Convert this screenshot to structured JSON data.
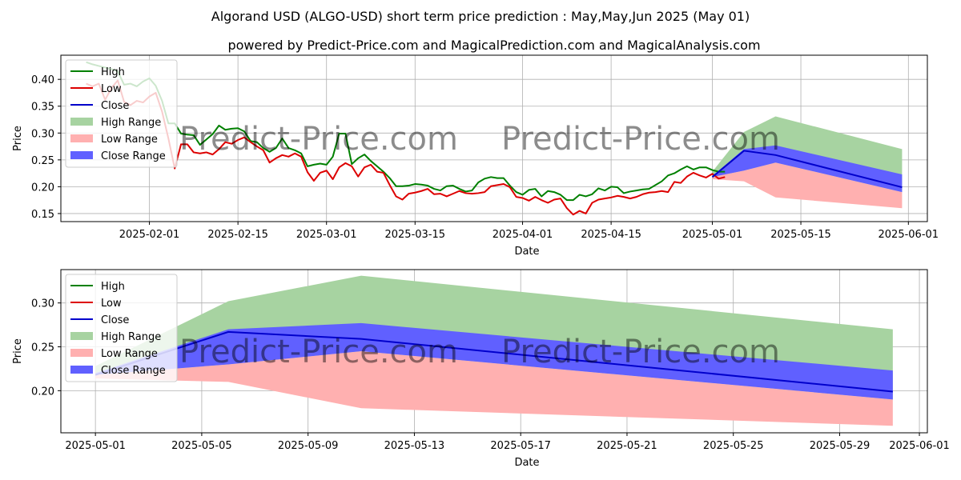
{
  "title": "Algorand USD (ALGO-USD) short term price prediction : May,May,Jun 2025 (May 01)",
  "subtitle": "powered by Predict-Price.com and MagicalPrediction.com and MagicalAnalysis.com",
  "watermark": "Predict-Price.com",
  "colors": {
    "high": "#008000",
    "low": "#dd0000",
    "close": "#0000cc",
    "high_range": "#a7d3a1",
    "low_range": "#ffb0b0",
    "close_range": "#6060ff",
    "grid": "#b0b0b0"
  },
  "legend": [
    "High",
    "Low",
    "Close",
    "High Range",
    "Low Range",
    "Close Range"
  ],
  "chart_data": [
    {
      "type": "line",
      "xlabel": "Date",
      "ylabel": "Price",
      "xlim": [
        "2025-01-18",
        "2025-06-04"
      ],
      "ylim": [
        0.135,
        0.445
      ],
      "x_ticks": [
        "2025-02-01",
        "2025-02-15",
        "2025-03-01",
        "2025-03-15",
        "2025-04-01",
        "2025-04-15",
        "2025-05-01",
        "2025-05-15",
        "2025-06-01"
      ],
      "y_ticks": [
        "0.15",
        "0.20",
        "0.25",
        "0.30",
        "0.35",
        "0.40"
      ],
      "grid": true,
      "legend_position": "top-left",
      "history": {
        "start": "2025-01-22",
        "high": [
          0.432,
          0.428,
          0.425,
          0.422,
          0.419,
          0.415,
          0.39,
          0.392,
          0.387,
          0.396,
          0.402,
          0.388,
          0.36,
          0.318,
          0.318,
          0.299,
          0.297,
          0.296,
          0.278,
          0.288,
          0.298,
          0.314,
          0.306,
          0.308,
          0.309,
          0.303,
          0.285,
          0.283,
          0.272,
          0.265,
          0.272,
          0.29,
          0.272,
          0.268,
          0.262,
          0.238,
          0.241,
          0.243,
          0.241,
          0.256,
          0.299,
          0.299,
          0.242,
          0.253,
          0.26,
          0.248,
          0.238,
          0.228,
          0.216,
          0.201,
          0.201,
          0.202,
          0.205,
          0.204,
          0.202,
          0.196,
          0.193,
          0.201,
          0.202,
          0.196,
          0.191,
          0.193,
          0.208,
          0.215,
          0.218,
          0.216,
          0.216,
          0.202,
          0.19,
          0.185,
          0.194,
          0.196,
          0.182,
          0.192,
          0.19,
          0.185,
          0.175,
          0.175,
          0.185,
          0.182,
          0.186,
          0.197,
          0.193,
          0.2,
          0.199,
          0.188,
          0.191,
          0.193,
          0.195,
          0.196,
          0.203,
          0.21,
          0.221,
          0.225,
          0.232,
          0.238,
          0.232,
          0.236,
          0.236,
          0.231,
          0.228,
          0.228
        ],
        "low": [
          0.392,
          0.387,
          0.392,
          0.362,
          0.384,
          0.398,
          0.358,
          0.352,
          0.36,
          0.357,
          0.368,
          0.375,
          0.34,
          0.29,
          0.234,
          0.279,
          0.279,
          0.264,
          0.262,
          0.264,
          0.26,
          0.27,
          0.283,
          0.28,
          0.287,
          0.292,
          0.283,
          0.275,
          0.268,
          0.245,
          0.253,
          0.259,
          0.256,
          0.262,
          0.256,
          0.227,
          0.211,
          0.226,
          0.23,
          0.214,
          0.236,
          0.244,
          0.238,
          0.219,
          0.236,
          0.241,
          0.228,
          0.226,
          0.203,
          0.182,
          0.176,
          0.187,
          0.189,
          0.192,
          0.196,
          0.186,
          0.187,
          0.182,
          0.187,
          0.192,
          0.188,
          0.187,
          0.188,
          0.19,
          0.201,
          0.203,
          0.205,
          0.199,
          0.181,
          0.179,
          0.174,
          0.181,
          0.175,
          0.17,
          0.176,
          0.178,
          0.16,
          0.148,
          0.155,
          0.15,
          0.17,
          0.176,
          0.178,
          0.18,
          0.183,
          0.181,
          0.178,
          0.181,
          0.186,
          0.189,
          0.19,
          0.192,
          0.19,
          0.209,
          0.207,
          0.219,
          0.226,
          0.221,
          0.217,
          0.224,
          0.215,
          0.218
        ]
      },
      "forecast": {
        "dates": [
          "2025-05-01",
          "2025-05-06",
          "2025-05-11",
          "2025-05-31"
        ],
        "close": [
          0.218,
          0.267,
          0.259,
          0.199
        ],
        "high_range_upper": [
          0.228,
          0.302,
          0.331,
          0.27
        ],
        "high_range_lower": [
          0.218,
          0.23,
          0.245,
          0.19
        ],
        "close_range_upper": [
          0.22,
          0.27,
          0.277,
          0.223
        ],
        "close_range_lower": [
          0.218,
          0.23,
          0.245,
          0.19
        ],
        "low_range_upper": [
          0.218,
          0.23,
          0.245,
          0.19
        ],
        "low_range_lower": [
          0.214,
          0.21,
          0.18,
          0.16
        ]
      }
    },
    {
      "type": "line",
      "xlabel": "Date",
      "ylabel": "Price",
      "xlim": [
        "2025-04-29.7",
        "2025-06-01.3"
      ],
      "ylim": [
        0.152,
        0.338
      ],
      "x_ticks": [
        "2025-05-01",
        "2025-05-05",
        "2025-05-09",
        "2025-05-13",
        "2025-05-17",
        "2025-05-21",
        "2025-05-25",
        "2025-05-29",
        "2025-06-01"
      ],
      "y_ticks": [
        "0.20",
        "0.25",
        "0.30"
      ],
      "grid": true,
      "legend_position": "top-left",
      "forecast": {
        "dates": [
          "2025-05-01",
          "2025-05-06",
          "2025-05-11",
          "2025-05-31"
        ],
        "close": [
          0.218,
          0.267,
          0.259,
          0.199
        ],
        "high_range_upper": [
          0.228,
          0.302,
          0.331,
          0.27
        ],
        "high_range_lower": [
          0.218,
          0.23,
          0.245,
          0.19
        ],
        "close_range_upper": [
          0.22,
          0.27,
          0.277,
          0.223
        ],
        "close_range_lower": [
          0.218,
          0.23,
          0.245,
          0.19
        ],
        "low_range_upper": [
          0.218,
          0.23,
          0.245,
          0.19
        ],
        "low_range_lower": [
          0.214,
          0.21,
          0.18,
          0.16
        ]
      }
    }
  ]
}
